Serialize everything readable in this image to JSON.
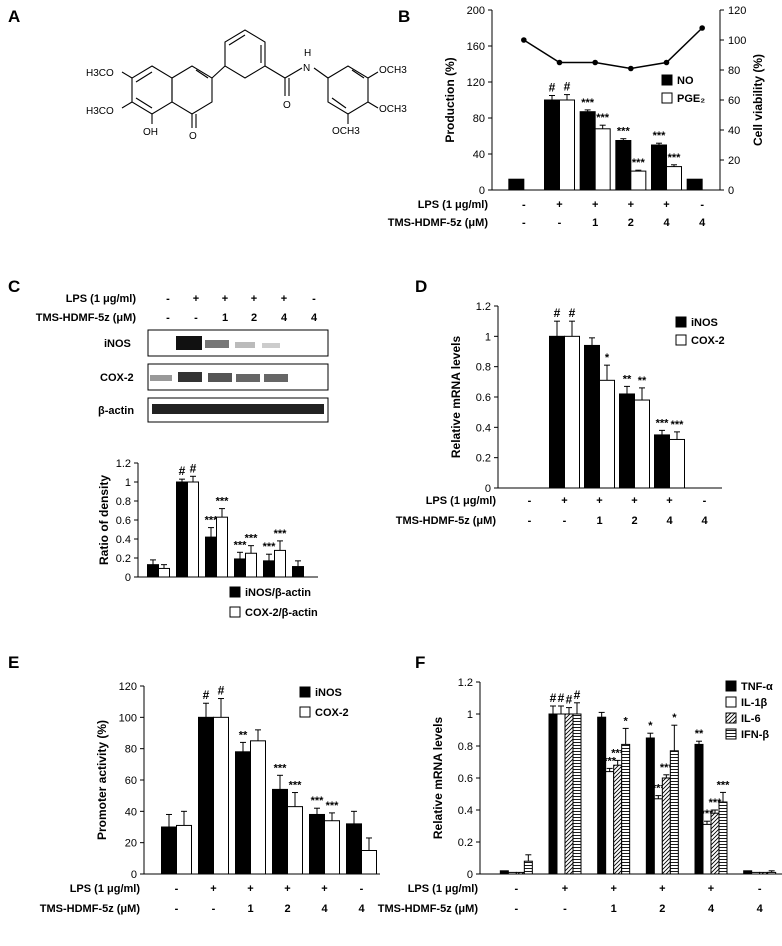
{
  "panels": {
    "A": {
      "label": "A"
    },
    "B": {
      "label": "B"
    },
    "C": {
      "label": "C"
    },
    "D": {
      "label": "D"
    },
    "E": {
      "label": "E"
    },
    "F": {
      "label": "F"
    }
  },
  "chemical": {
    "groups": [
      "H3CO",
      "H3CO",
      "OH",
      "O",
      "O",
      "O",
      "H",
      "N",
      "OCH3",
      "OCH3",
      "OCH3"
    ]
  },
  "conditions": {
    "lps_label": "LPS (1 μg/ml)",
    "tms_label": "TMS-HDMF-5z (μM)",
    "lps": [
      "-",
      "+",
      "+",
      "+",
      "+",
      "-"
    ],
    "tms": [
      "-",
      "-",
      "1",
      "2",
      "4",
      "4"
    ]
  },
  "western": {
    "bands": [
      "iNOS",
      "COX-2",
      "β-actin"
    ]
  },
  "colors": {
    "filled": "#000000",
    "open": "#ffffff",
    "line": "#000000"
  },
  "chart_data": [
    {
      "id": "B",
      "type": "bar",
      "ylabel": "Production (%)",
      "y2label": "Cell viability (%)",
      "ylim": [
        0,
        200
      ],
      "y2lim": [
        0,
        120
      ],
      "yticks": [
        "0",
        "40",
        "80",
        "120",
        "160",
        "200"
      ],
      "y2ticks": [
        "0",
        "20",
        "40",
        "60",
        "80",
        "100",
        "120"
      ],
      "series": [
        {
          "name": "NO",
          "values": [
            12,
            100,
            87,
            55,
            50,
            12
          ],
          "errors": [
            0,
            5,
            2,
            2,
            2,
            0
          ],
          "sig": [
            "",
            "#",
            "***",
            "***",
            "***",
            ""
          ]
        },
        {
          "name": "PGE₂",
          "values": [
            null,
            100,
            68,
            21,
            26,
            null
          ],
          "errors": [
            0,
            6,
            4,
            1,
            2,
            0
          ],
          "sig": [
            "",
            "#",
            "***",
            "***",
            "***",
            ""
          ]
        }
      ],
      "line": {
        "name": "Cell viability",
        "values": [
          100,
          85,
          85,
          81,
          85,
          108
        ]
      }
    },
    {
      "id": "C",
      "type": "bar",
      "ylabel": "Ratio of density",
      "ylim": [
        0,
        1.2
      ],
      "yticks": [
        "0",
        "0.2",
        "0.4",
        "0.6",
        "0.8",
        "1",
        "1.2"
      ],
      "series": [
        {
          "name": "iNOS/β-actin",
          "values": [
            0.13,
            1.0,
            0.42,
            0.19,
            0.17,
            0.11
          ],
          "errors": [
            0.05,
            0.03,
            0.1,
            0.07,
            0.07,
            0.06
          ],
          "sig": [
            "",
            "#",
            "***",
            "***",
            "***",
            ""
          ]
        },
        {
          "name": "COX-2/β-actin",
          "values": [
            0.09,
            1.0,
            0.63,
            0.25,
            0.28,
            null
          ],
          "errors": [
            0.04,
            0.06,
            0.09,
            0.08,
            0.1,
            0
          ],
          "sig": [
            "",
            "#",
            "***",
            "***",
            "***",
            ""
          ]
        }
      ]
    },
    {
      "id": "D",
      "type": "bar",
      "ylabel": "Relative mRNA levels",
      "ylim": [
        0,
        1.2
      ],
      "yticks": [
        "0",
        "0.2",
        "0.4",
        "0.6",
        "0.8",
        "1",
        "1.2"
      ],
      "series": [
        {
          "name": "iNOS",
          "values": [
            null,
            1.0,
            0.94,
            0.62,
            0.35,
            null
          ],
          "errors": [
            0,
            0.1,
            0.05,
            0.05,
            0.03,
            0
          ],
          "sig": [
            "",
            "#",
            "",
            "**",
            "***",
            ""
          ]
        },
        {
          "name": "COX-2",
          "values": [
            null,
            1.0,
            0.71,
            0.58,
            0.32,
            null
          ],
          "errors": [
            0,
            0.1,
            0.1,
            0.08,
            0.05,
            0
          ],
          "sig": [
            "",
            "#",
            "*",
            "**",
            "***",
            ""
          ]
        }
      ]
    },
    {
      "id": "E",
      "type": "bar",
      "ylabel": "Promoter activity (%)",
      "ylim": [
        0,
        120
      ],
      "yticks": [
        "0",
        "20",
        "40",
        "60",
        "80",
        "100",
        "120"
      ],
      "series": [
        {
          "name": "iNOS",
          "values": [
            30,
            100,
            78,
            54,
            38,
            32
          ],
          "errors": [
            8,
            9,
            6,
            9,
            4,
            8
          ],
          "sig": [
            "",
            "#",
            "**",
            "***",
            "***",
            ""
          ]
        },
        {
          "name": "COX-2",
          "values": [
            31,
            100,
            85,
            43,
            34,
            15
          ],
          "errors": [
            9,
            12,
            7,
            9,
            5,
            8
          ],
          "sig": [
            "",
            "#",
            "",
            "***",
            "***",
            ""
          ]
        }
      ]
    },
    {
      "id": "F",
      "type": "bar",
      "ylabel": "Relative mRNA levels",
      "ylim": [
        0,
        1.2
      ],
      "yticks": [
        "0",
        "0.2",
        "0.4",
        "0.6",
        "0.8",
        "1",
        "1.2"
      ],
      "series": [
        {
          "name": "TNF-α",
          "values": [
            0.02,
            1.0,
            0.98,
            0.85,
            0.81,
            0.02
          ],
          "errors": [
            0,
            0.05,
            0.03,
            0.03,
            0.02,
            0
          ],
          "sig": [
            "",
            "#",
            "",
            "*",
            "**",
            ""
          ]
        },
        {
          "name": "IL-1β",
          "values": [
            0.01,
            1.0,
            0.64,
            0.47,
            0.31,
            0.01
          ],
          "errors": [
            0,
            0.05,
            0.02,
            0.02,
            0.02,
            0
          ],
          "sig": [
            "",
            "#",
            "***",
            "***",
            "***",
            ""
          ]
        },
        {
          "name": "IL-6",
          "values": [
            0.01,
            1.0,
            0.68,
            0.6,
            0.38,
            0.01
          ],
          "errors": [
            0,
            0.04,
            0.03,
            0.02,
            0.02,
            0
          ],
          "sig": [
            "",
            "#",
            "***",
            "***",
            "***",
            ""
          ]
        },
        {
          "name": "IFN-β",
          "values": [
            0.08,
            1.0,
            0.81,
            0.77,
            0.45,
            0.01
          ],
          "errors": [
            0.04,
            0.07,
            0.1,
            0.16,
            0.06,
            0.01
          ],
          "sig": [
            "",
            "#",
            "*",
            "*",
            "***",
            ""
          ]
        }
      ]
    }
  ]
}
